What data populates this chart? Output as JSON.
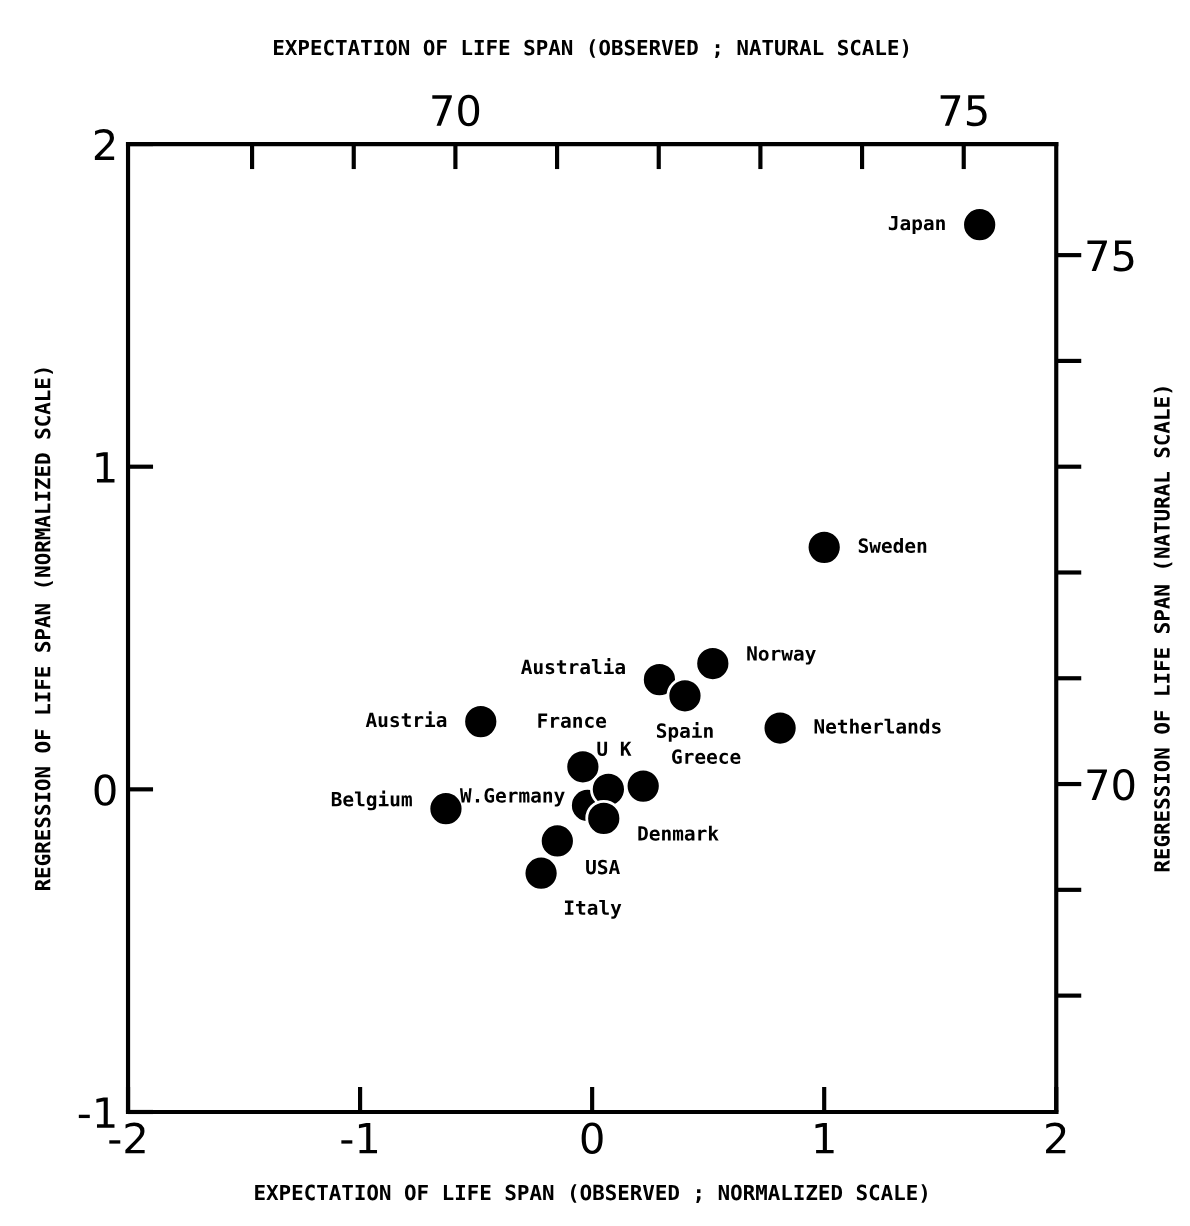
{
  "chart_data": {
    "type": "scatter",
    "xlabel": "EXPECTATION OF LIFE SPAN (OBSERVED ; NORMALIZED SCALE)",
    "ylabel": "REGRESSION OF LIFE SPAN (NORMALIZED SCALE)",
    "x2label": "EXPECTATION OF LIFE SPAN (OBSERVED ; NATURAL SCALE)",
    "y2label": "REGRESSION OF LIFE SPAN (NATURAL SCALE)",
    "x": [
      1.67,
      1.0,
      0.52,
      0.29,
      0.4,
      0.81,
      -0.48,
      -0.02,
      -0.04,
      0.07,
      0.22,
      0.05,
      -0.63,
      -0.15,
      -0.22
    ],
    "series": [
      {
        "color": "#000000",
        "values": [
          1.75,
          0.75,
          0.39,
          0.34,
          0.29,
          0.19,
          0.21,
          -0.05,
          0.07,
          0.0,
          0.01,
          -0.09,
          -0.06,
          -0.16,
          -0.26
        ]
      }
    ],
    "marker": "circle",
    "annotations": [
      {
        "text": "Japan",
        "x": 1.67,
        "y": 1.75
      },
      {
        "text": "Sweden",
        "x": 1.0,
        "y": 0.75
      },
      {
        "text": "Norway",
        "x": 0.52,
        "y": 0.39
      },
      {
        "text": "Australia",
        "x": 0.29,
        "y": 0.34
      },
      {
        "text": "Spain",
        "x": 0.4,
        "y": 0.29
      },
      {
        "text": "Netherlands",
        "x": 0.81,
        "y": 0.19
      },
      {
        "text": "Austria",
        "x": -0.48,
        "y": 0.21
      },
      {
        "text": "France",
        "x": -0.04,
        "y": 0.07
      },
      {
        "text": "W.Germany",
        "x": -0.02,
        "y": -0.05
      },
      {
        "text": "Greece",
        "x": 0.22,
        "y": 0.01
      },
      {
        "text": "U K",
        "x": 0.07,
        "y": 0.0
      },
      {
        "text": "Denmark",
        "x": 0.05,
        "y": -0.09
      },
      {
        "text": "Belgium",
        "x": -0.63,
        "y": -0.06
      },
      {
        "text": "USA",
        "x": -0.15,
        "y": -0.16
      },
      {
        "text": "Italy",
        "x": -0.22,
        "y": -0.26
      }
    ],
    "xlim": [
      -2,
      2
    ],
    "xticks": [
      -2,
      -1,
      0,
      1,
      2
    ],
    "ylim": [
      -1,
      2
    ],
    "yticks": [
      -1,
      0,
      1,
      2
    ],
    "x2lim": [
      66.78,
      75.91
    ],
    "x2ticks": [
      {
        "value": 68,
        "label": null
      },
      {
        "value": 69,
        "label": null
      },
      70,
      {
        "value": 71,
        "label": null
      },
      {
        "value": 72,
        "label": null
      },
      {
        "value": 73,
        "label": null
      },
      {
        "value": 74,
        "label": null
      },
      75
    ],
    "y2lim": [
      66.9,
      76.05
    ],
    "y2ticks": [
      {
        "value": 68,
        "label": null
      },
      {
        "value": 69,
        "label": null
      },
      70,
      {
        "value": 71,
        "label": null
      },
      {
        "value": 72,
        "label": null
      },
      {
        "value": 73,
        "label": null
      },
      {
        "value": 74,
        "label": null
      },
      75
    ],
    "grid": false,
    "legend": false
  }
}
